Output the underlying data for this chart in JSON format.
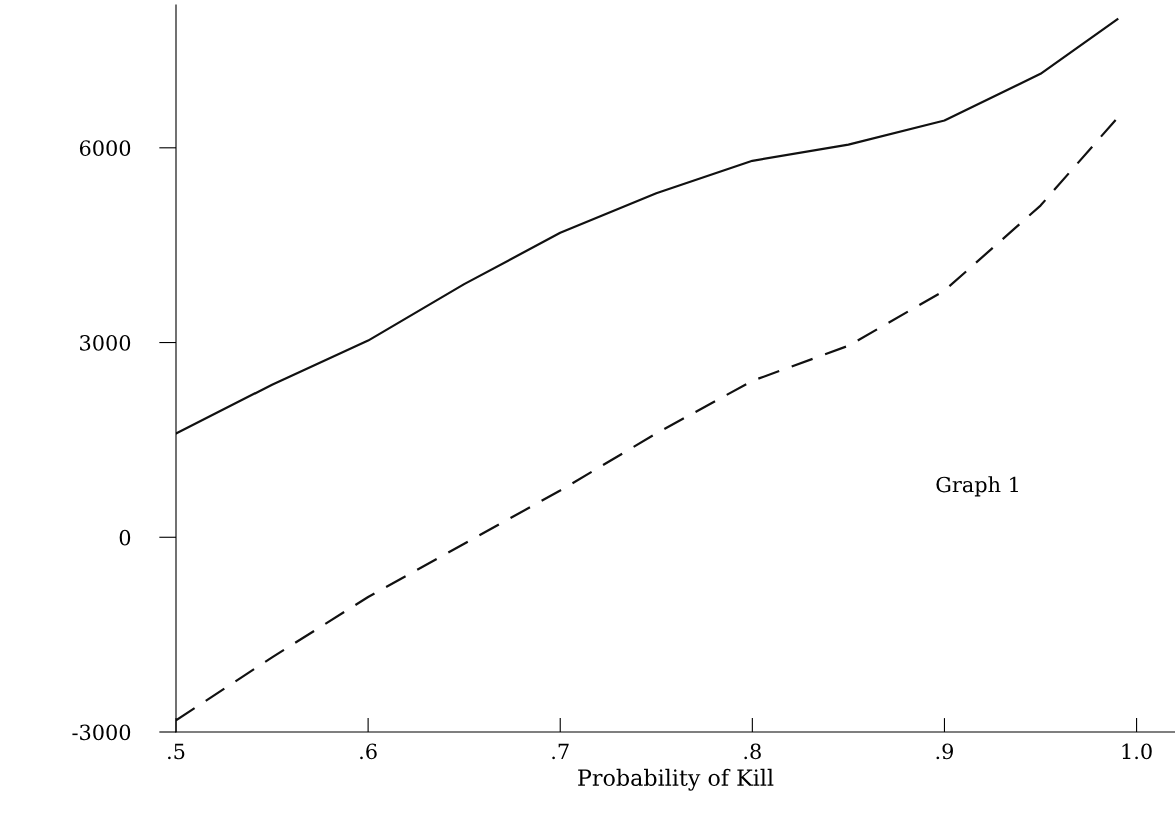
{
  "chart_data": {
    "type": "line",
    "xlabel": "Probability of Kill",
    "x": [
      0.5,
      0.55,
      0.6,
      0.65,
      0.7,
      0.75,
      0.8,
      0.85,
      0.9,
      0.95,
      0.99
    ],
    "series": [
      {
        "color": "#111111",
        "line_style": "solid",
        "values": [
          1600,
          2350,
          3030,
          3900,
          4690,
          5300,
          5800,
          6050,
          6420,
          7140,
          7980
        ]
      },
      {
        "color": "#111111",
        "line_style": "dashed",
        "values": [
          -2820,
          -1850,
          -920,
          -100,
          720,
          1600,
          2410,
          2950,
          3800,
          5110,
          6460
        ]
      }
    ],
    "xlim": [
      0.5,
      1.02
    ],
    "ylim": [
      -3000,
      8200
    ],
    "xticks": [
      {
        "value": 0.5,
        "label": ".5"
      },
      {
        "value": 0.6,
        "label": ".6"
      },
      {
        "value": 0.7,
        "label": ".7"
      },
      {
        "value": 0.8,
        "label": ".8"
      },
      {
        "value": 0.9,
        "label": ".9"
      },
      {
        "value": 1.0,
        "label": "1.0"
      }
    ],
    "yticks": [
      -3000,
      0,
      3000,
      6000
    ],
    "annotations": [
      "Graph 1"
    ],
    "grid": false,
    "legend": false
  }
}
